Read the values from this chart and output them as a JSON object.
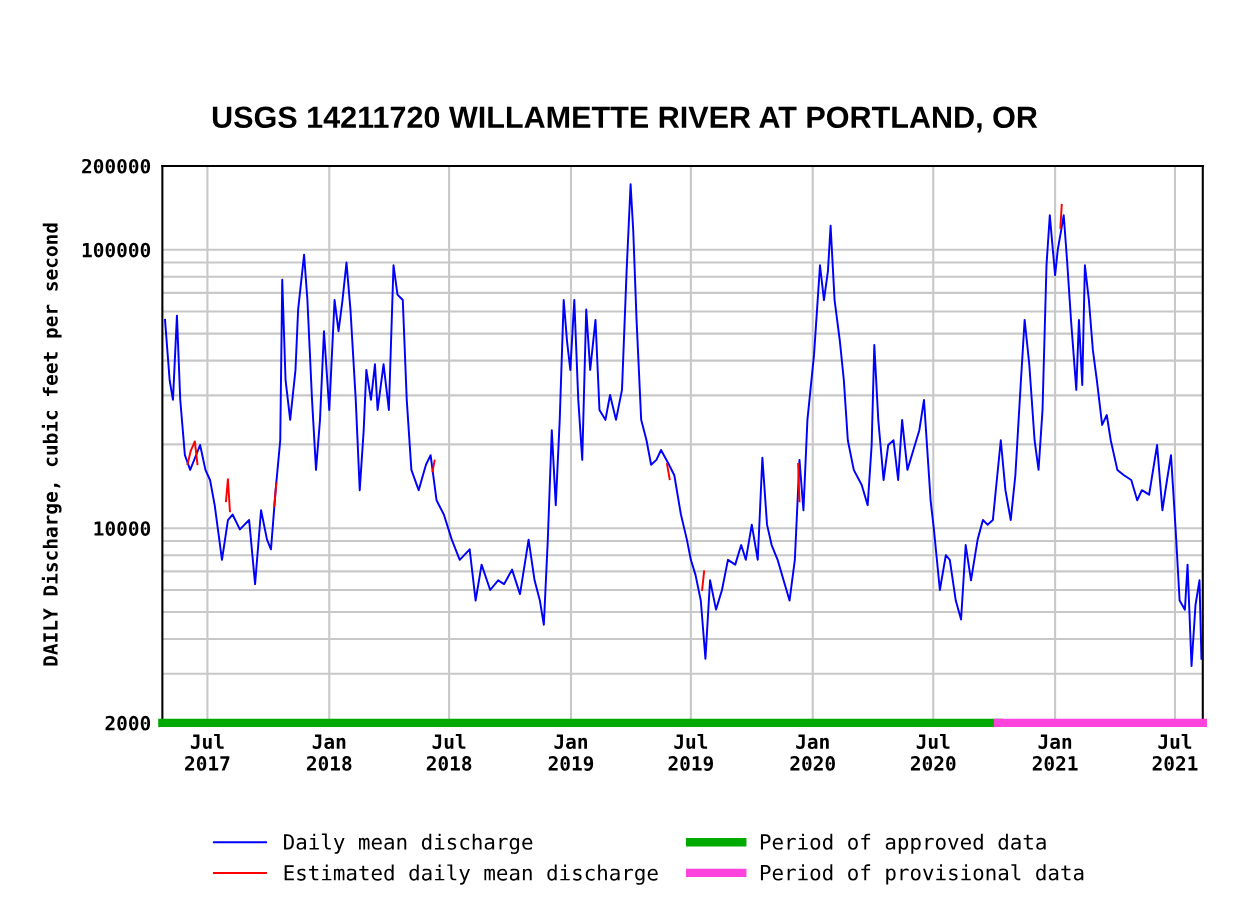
{
  "chart_data": {
    "type": "line",
    "title": "USGS 14211720 WILLAMETTE RIVER AT PORTLAND, OR",
    "ylabel": "DAILY Discharge, cubic feet per second",
    "log": true,
    "grid": true,
    "legend": "bottom",
    "marker": "none",
    "line_style": "solid",
    "xlim": [
      "2017-04-24",
      "2021-08-12"
    ],
    "ylim": [
      2000,
      200000
    ],
    "xticks": [
      {
        "value": "2017-07-01",
        "label": "Jul\n2017"
      },
      {
        "value": "2018-01-01",
        "label": "Jan\n2018"
      },
      {
        "value": "2018-07-01",
        "label": "Jul\n2018"
      },
      {
        "value": "2019-01-01",
        "label": "Jan\n2019"
      },
      {
        "value": "2019-07-01",
        "label": "Jul\n2019"
      },
      {
        "value": "2020-01-01",
        "label": "Jan\n2020"
      },
      {
        "value": "2020-07-01",
        "label": "Jul\n2020"
      },
      {
        "value": "2021-01-01",
        "label": "Jan\n2021"
      },
      {
        "value": "2021-07-01",
        "label": "Jul\n2021"
      }
    ],
    "yticks": [
      2000,
      10000,
      100000,
      200000
    ],
    "series": [
      {
        "name": "Daily mean discharge",
        "color": "#0000ff",
        "x": [
          "2017-04-28",
          "2017-05-05",
          "2017-05-10",
          "2017-05-16",
          "2017-05-21",
          "2017-05-28",
          "2017-06-05",
          "2017-06-20",
          "2017-06-28",
          "2017-07-05",
          "2017-07-12",
          "2017-07-23",
          "2017-08-01",
          "2017-08-08",
          "2017-08-19",
          "2017-09-02",
          "2017-09-11",
          "2017-09-20",
          "2017-09-29",
          "2017-10-05",
          "2017-10-12",
          "2017-10-19",
          "2017-10-22",
          "2017-10-27",
          "2017-11-03",
          "2017-11-11",
          "2017-11-15",
          "2017-11-24",
          "2017-11-29",
          "2017-12-06",
          "2017-12-12",
          "2017-12-18",
          "2017-12-24",
          "2018-01-01",
          "2018-01-09",
          "2018-01-15",
          "2018-01-21",
          "2018-01-27",
          "2018-02-02",
          "2018-02-10",
          "2018-02-16",
          "2018-02-22",
          "2018-02-26",
          "2018-03-05",
          "2018-03-11",
          "2018-03-15",
          "2018-03-24",
          "2018-04-01",
          "2018-04-08",
          "2018-04-14",
          "2018-04-22",
          "2018-04-28",
          "2018-05-05",
          "2018-05-16",
          "2018-05-27",
          "2018-06-03",
          "2018-06-12",
          "2018-06-23",
          "2018-07-05",
          "2018-07-17",
          "2018-08-01",
          "2018-08-10",
          "2018-08-19",
          "2018-09-01",
          "2018-09-13",
          "2018-09-22",
          "2018-10-04",
          "2018-10-16",
          "2018-10-29",
          "2018-11-07",
          "2018-11-15",
          "2018-11-21",
          "2018-11-27",
          "2018-12-03",
          "2018-12-09",
          "2018-12-15",
          "2018-12-21",
          "2018-12-26",
          "2018-12-31",
          "2019-01-06",
          "2019-01-12",
          "2019-01-18",
          "2019-01-24",
          "2019-01-30",
          "2019-02-07",
          "2019-02-13",
          "2019-02-22",
          "2019-03-01",
          "2019-03-10",
          "2019-03-19",
          "2019-03-26",
          "2019-04-01",
          "2019-04-05",
          "2019-04-10",
          "2019-04-17",
          "2019-04-25",
          "2019-05-02",
          "2019-05-10",
          "2019-05-17",
          "2019-05-29",
          "2019-06-06",
          "2019-06-16",
          "2019-06-25",
          "2019-07-01",
          "2019-07-08",
          "2019-07-16",
          "2019-07-23",
          "2019-07-30",
          "2019-08-08",
          "2019-08-17",
          "2019-08-26",
          "2019-09-06",
          "2019-09-15",
          "2019-09-22",
          "2019-10-01",
          "2019-10-10",
          "2019-10-17",
          "2019-10-24",
          "2019-10-31",
          "2019-11-09",
          "2019-11-18",
          "2019-11-27",
          "2019-12-05",
          "2019-12-12",
          "2019-12-18",
          "2019-12-24",
          "2020-01-03",
          "2020-01-12",
          "2020-01-18",
          "2020-01-24",
          "2020-01-28",
          "2020-02-03",
          "2020-02-11",
          "2020-02-17",
          "2020-02-23",
          "2020-03-03",
          "2020-03-15",
          "2020-03-24",
          "2020-03-30",
          "2020-04-03",
          "2020-04-09",
          "2020-04-17",
          "2020-04-24",
          "2020-05-02",
          "2020-05-09",
          "2020-05-15",
          "2020-05-23",
          "2020-06-01",
          "2020-06-10",
          "2020-06-17",
          "2020-06-23",
          "2020-06-27",
          "2020-07-02",
          "2020-07-11",
          "2020-07-20",
          "2020-07-26",
          "2020-08-04",
          "2020-08-12",
          "2020-08-19",
          "2020-08-27",
          "2020-09-06",
          "2020-09-14",
          "2020-09-21",
          "2020-09-29",
          "2020-10-05",
          "2020-10-11",
          "2020-10-18",
          "2020-10-26",
          "2020-11-02",
          "2020-11-10",
          "2020-11-16",
          "2020-11-23",
          "2020-12-01",
          "2020-12-07",
          "2020-12-13",
          "2020-12-19",
          "2020-12-24",
          "2021-01-01",
          "2021-01-05",
          "2021-01-10",
          "2021-01-14",
          "2021-01-19",
          "2021-01-25",
          "2021-02-02",
          "2021-02-06",
          "2021-02-11",
          "2021-02-15",
          "2021-02-21",
          "2021-02-27",
          "2021-03-05",
          "2021-03-13",
          "2021-03-20",
          "2021-03-26",
          "2021-04-05",
          "2021-04-15",
          "2021-04-26",
          "2021-05-05",
          "2021-05-12",
          "2021-05-23",
          "2021-06-04",
          "2021-06-12",
          "2021-06-19",
          "2021-06-25",
          "2021-07-02",
          "2021-07-08",
          "2021-07-16",
          "2021-07-20",
          "2021-07-26",
          "2021-08-01",
          "2021-08-07",
          "2021-08-10"
        ],
        "values": [
          56000,
          34000,
          28900,
          58000,
          28900,
          18300,
          16200,
          19900,
          16200,
          14900,
          12100,
          7700,
          10700,
          11200,
          9900,
          10700,
          6300,
          11600,
          9100,
          8400,
          13700,
          20700,
          78000,
          34000,
          24500,
          37000,
          61000,
          96000,
          66000,
          28900,
          16200,
          24500,
          51000,
          26600,
          66000,
          51000,
          66000,
          90000,
          61000,
          28900,
          13700,
          22500,
          37000,
          28900,
          38800,
          26600,
          38800,
          26600,
          88000,
          69000,
          66000,
          28900,
          16200,
          13700,
          16900,
          18300,
          12600,
          11200,
          9100,
          7700,
          8400,
          5500,
          7400,
          6000,
          6500,
          6300,
          7100,
          5800,
          9100,
          6500,
          5500,
          4500,
          9100,
          22500,
          12100,
          24500,
          66000,
          47000,
          37000,
          66000,
          28900,
          17600,
          61000,
          37000,
          56000,
          26600,
          24500,
          30100,
          24500,
          31400,
          84000,
          172000,
          117000,
          56000,
          24500,
          20700,
          16900,
          17600,
          19100,
          16900,
          15500,
          11200,
          9100,
          7700,
          6800,
          5500,
          3400,
          6500,
          5100,
          6000,
          7700,
          7400,
          8700,
          7700,
          10300,
          7700,
          17900,
          10300,
          8700,
          7700,
          6500,
          5500,
          7700,
          17600,
          11600,
          24500,
          42000,
          88000,
          66000,
          84000,
          122000,
          66000,
          47000,
          34000,
          20700,
          16200,
          14300,
          12100,
          19900,
          45500,
          24500,
          14900,
          19900,
          20700,
          14900,
          24500,
          16200,
          19100,
          22500,
          28900,
          17600,
          12600,
          9900,
          6000,
          8000,
          7700,
          5500,
          4700,
          8700,
          6500,
          9100,
          10700,
          10300,
          10700,
          14900,
          20700,
          13700,
          10700,
          15500,
          32700,
          56000,
          38800,
          20700,
          16200,
          26600,
          88000,
          133000,
          81000,
          100000,
          117000,
          133000,
          92000,
          56000,
          31400,
          56000,
          32700,
          88000,
          66000,
          43700,
          34000,
          23500,
          25500,
          20700,
          16200,
          15500,
          14900,
          12600,
          13700,
          13200,
          19900,
          11600,
          14900,
          18300,
          9900,
          5500,
          5100,
          7400,
          3200,
          5300,
          6500,
          3400
        ]
      },
      {
        "name": "Estimated daily mean discharge",
        "color": "#ff0000",
        "x": [
          "2017-06-01",
          "2017-06-06",
          "2017-06-12",
          "2017-06-16",
          "2017-07-01",
          "2017-07-29",
          "2017-08-01",
          "2017-08-04",
          "2017-09-01",
          "2017-10-10",
          "2017-10-13",
          "2018-01-01",
          "2018-06-06",
          "2018-06-09",
          "2019-01-01",
          "2019-05-26",
          "2019-05-30",
          "2019-06-15",
          "2019-07-18",
          "2019-07-21",
          "2019-10-01",
          "2019-12-10",
          "2019-12-12",
          "2020-06-01",
          "2021-01-09",
          "2021-01-11"
        ],
        "values": [
          17000,
          19000,
          20500,
          17000,
          null,
          12500,
          15000,
          11500,
          null,
          12000,
          14500,
          null,
          16000,
          17500,
          null,
          17000,
          15000,
          null,
          6000,
          7000,
          null,
          17000,
          12500,
          null,
          120000,
          145000
        ]
      },
      {
        "name": "Period of approved data",
        "color": "#00aa00",
        "x": [
          "2017-04-24",
          "2020-10-07"
        ],
        "values": [
          2000,
          2000
        ]
      },
      {
        "name": "Period of provisional data",
        "color": "#ff44dd",
        "x": [
          "2020-10-07",
          "2021-08-12"
        ],
        "values": [
          2000,
          2000
        ]
      }
    ]
  }
}
